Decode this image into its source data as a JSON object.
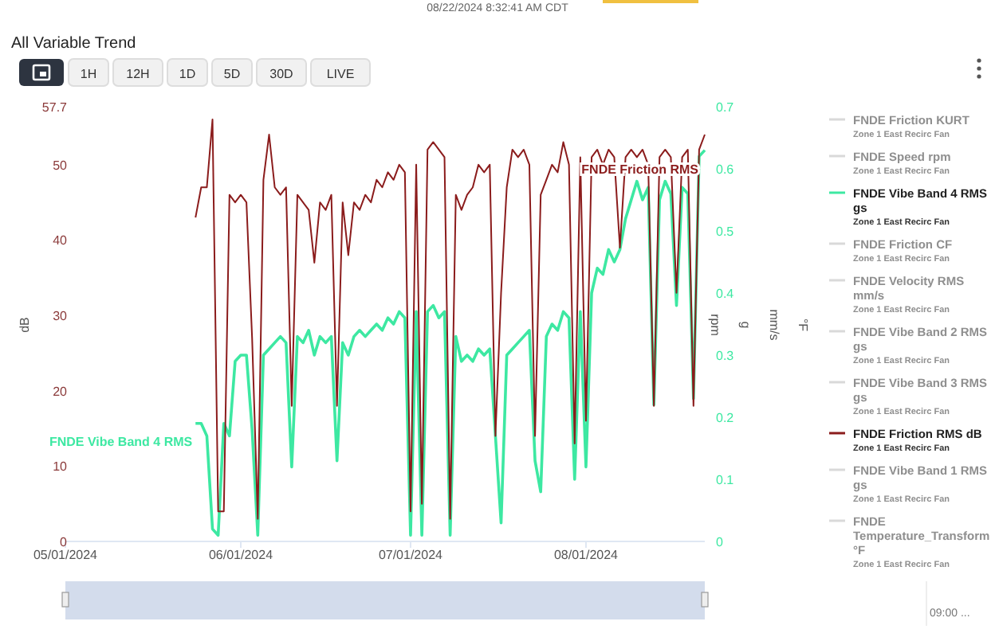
{
  "chart_data": {
    "type": "line",
    "title": "All Variable Trend",
    "ylabel": "dB",
    "y2label": "rpm",
    "annotations": [
      "08/22/2024 8:32:41 AM CDT",
      "1H",
      "12H",
      "1D",
      "5D",
      "30D",
      "LIVE",
      "g",
      "mm/s",
      "°F",
      "09:00 ...",
      "FNDE Vibe Band 4 RMS",
      "FNDE Friction RMS"
    ],
    "xlim": [
      "2024-05-01",
      "2024-08-22"
    ],
    "xticks": [
      {
        "value": "2024-05-01",
        "label": "05/01/2024"
      },
      {
        "value": "2024-06-01",
        "label": "06/01/2024"
      },
      {
        "value": "2024-07-01",
        "label": "07/01/2024"
      },
      {
        "value": "2024-08-01",
        "label": "08/01/2024"
      }
    ],
    "ylim": [
      0,
      57.7
    ],
    "yticks": [
      0,
      10,
      20,
      30,
      40,
      50,
      57.7
    ],
    "y2lim": [
      0,
      0.7
    ],
    "y2ticks": [
      0,
      0.1,
      0.2,
      0.3,
      0.4,
      0.5,
      0.6,
      0.7
    ],
    "legend": "right",
    "marker": "none",
    "line_style": "solid",
    "x": [
      "2024-05-24",
      "2024-05-25",
      "2024-05-26",
      "2024-05-27",
      "2024-05-28",
      "2024-05-29",
      "2024-05-30",
      "2024-05-31",
      "2024-06-01",
      "2024-06-02",
      "2024-06-03",
      "2024-06-04",
      "2024-06-05",
      "2024-06-06",
      "2024-06-07",
      "2024-06-08",
      "2024-06-09",
      "2024-06-10",
      "2024-06-11",
      "2024-06-12",
      "2024-06-13",
      "2024-06-14",
      "2024-06-15",
      "2024-06-16",
      "2024-06-17",
      "2024-06-18",
      "2024-06-19",
      "2024-06-20",
      "2024-06-21",
      "2024-06-22",
      "2024-06-23",
      "2024-06-24",
      "2024-06-25",
      "2024-06-26",
      "2024-06-27",
      "2024-06-28",
      "2024-06-29",
      "2024-06-30",
      "2024-07-01",
      "2024-07-02",
      "2024-07-03",
      "2024-07-04",
      "2024-07-05",
      "2024-07-06",
      "2024-07-07",
      "2024-07-08",
      "2024-07-09",
      "2024-07-10",
      "2024-07-11",
      "2024-07-12",
      "2024-07-13",
      "2024-07-14",
      "2024-07-15",
      "2024-07-16",
      "2024-07-17",
      "2024-07-18",
      "2024-07-19",
      "2024-07-20",
      "2024-07-21",
      "2024-07-22",
      "2024-07-23",
      "2024-07-24",
      "2024-07-25",
      "2024-07-26",
      "2024-07-27",
      "2024-07-28",
      "2024-07-29",
      "2024-07-30",
      "2024-07-31",
      "2024-08-01",
      "2024-08-02",
      "2024-08-03",
      "2024-08-04",
      "2024-08-05",
      "2024-08-06",
      "2024-08-07",
      "2024-08-08",
      "2024-08-09",
      "2024-08-10",
      "2024-08-11",
      "2024-08-12",
      "2024-08-13",
      "2024-08-14",
      "2024-08-15",
      "2024-08-16",
      "2024-08-17",
      "2024-08-18",
      "2024-08-19",
      "2024-08-20",
      "2024-08-21",
      "2024-08-22"
    ],
    "series": [
      {
        "name": "FNDE Friction KURT\nZone 1 East Recirc Fan",
        "color": "#d9d9d9",
        "values": [
          null,
          null,
          null,
          null,
          null,
          null,
          null,
          null,
          null,
          null,
          null,
          null,
          null,
          null,
          null,
          null,
          null,
          null,
          null,
          null,
          null,
          null,
          null,
          null,
          null,
          null,
          null,
          null,
          null,
          null,
          null,
          null,
          null,
          null,
          null,
          null,
          null,
          null,
          null,
          null,
          null,
          null,
          null,
          null,
          null,
          null,
          null,
          null,
          null,
          null,
          null,
          null,
          null,
          null,
          null,
          null,
          null,
          null,
          null,
          null,
          null,
          null,
          null,
          null,
          null,
          null,
          null,
          null,
          null,
          null,
          null,
          null,
          null,
          null,
          null,
          null,
          null,
          null,
          null,
          null,
          null,
          null,
          null,
          null,
          null,
          null,
          null,
          null,
          null,
          null,
          null
        ]
      },
      {
        "name": "FNDE Speed rpm\nZone 1 East Recirc Fan",
        "color": "#d9d9d9",
        "values": [
          null,
          null,
          null,
          null,
          null,
          null,
          null,
          null,
          null,
          null,
          null,
          null,
          null,
          null,
          null,
          null,
          null,
          null,
          null,
          null,
          null,
          null,
          null,
          null,
          null,
          null,
          null,
          null,
          null,
          null,
          null,
          null,
          null,
          null,
          null,
          null,
          null,
          null,
          null,
          null,
          null,
          null,
          null,
          null,
          null,
          null,
          null,
          null,
          null,
          null,
          null,
          null,
          null,
          null,
          null,
          null,
          null,
          null,
          null,
          null,
          null,
          null,
          null,
          null,
          null,
          null,
          null,
          null,
          null,
          null,
          null,
          null,
          null,
          null,
          null,
          null,
          null,
          null,
          null,
          null,
          null,
          null,
          null,
          null,
          null,
          null,
          null,
          null,
          null,
          null,
          null
        ]
      },
      {
        "name": "FNDE Vibe Band 4 RMS gs\nZone 1 East Recirc Fan",
        "color": "#3de8a2",
        "axis": "y2",
        "values": [
          0.19,
          0.19,
          0.17,
          0.02,
          0.01,
          0.19,
          0.17,
          0.29,
          0.3,
          0.3,
          0.18,
          0.01,
          0.3,
          0.31,
          0.32,
          0.33,
          0.32,
          0.12,
          0.33,
          0.32,
          0.34,
          0.3,
          0.33,
          0.32,
          0.33,
          0.13,
          0.32,
          0.3,
          0.33,
          0.34,
          0.33,
          0.34,
          0.35,
          0.34,
          0.36,
          0.35,
          0.37,
          0.36,
          0.01,
          0.37,
          0.01,
          0.37,
          0.38,
          0.36,
          0.37,
          0.01,
          0.33,
          0.29,
          0.3,
          0.29,
          0.31,
          0.3,
          0.31,
          0.17,
          0.03,
          0.3,
          0.31,
          0.32,
          0.33,
          0.34,
          0.13,
          0.08,
          0.33,
          0.35,
          0.34,
          0.37,
          0.36,
          0.1,
          0.37,
          0.12,
          0.4,
          0.44,
          0.43,
          0.47,
          0.45,
          0.47,
          0.52,
          0.55,
          0.58,
          0.55,
          0.57,
          0.22,
          0.55,
          0.58,
          0.56,
          0.38,
          0.57,
          0.56,
          0.23,
          0.62,
          0.63
        ]
      },
      {
        "name": "FNDE Friction CF\nZone 1 East Recirc Fan",
        "color": "#d9d9d9",
        "values": [
          null,
          null,
          null,
          null,
          null,
          null,
          null,
          null,
          null,
          null,
          null,
          null,
          null,
          null,
          null,
          null,
          null,
          null,
          null,
          null,
          null,
          null,
          null,
          null,
          null,
          null,
          null,
          null,
          null,
          null,
          null,
          null,
          null,
          null,
          null,
          null,
          null,
          null,
          null,
          null,
          null,
          null,
          null,
          null,
          null,
          null,
          null,
          null,
          null,
          null,
          null,
          null,
          null,
          null,
          null,
          null,
          null,
          null,
          null,
          null,
          null,
          null,
          null,
          null,
          null,
          null,
          null,
          null,
          null,
          null,
          null,
          null,
          null,
          null,
          null,
          null,
          null,
          null,
          null,
          null,
          null,
          null,
          null,
          null,
          null,
          null,
          null,
          null,
          null,
          null,
          null
        ]
      },
      {
        "name": "FNDE Velocity RMS mm/s\nZone 1 East Recirc Fan",
        "color": "#d9d9d9",
        "values": [
          null,
          null,
          null,
          null,
          null,
          null,
          null,
          null,
          null,
          null,
          null,
          null,
          null,
          null,
          null,
          null,
          null,
          null,
          null,
          null,
          null,
          null,
          null,
          null,
          null,
          null,
          null,
          null,
          null,
          null,
          null,
          null,
          null,
          null,
          null,
          null,
          null,
          null,
          null,
          null,
          null,
          null,
          null,
          null,
          null,
          null,
          null,
          null,
          null,
          null,
          null,
          null,
          null,
          null,
          null,
          null,
          null,
          null,
          null,
          null,
          null,
          null,
          null,
          null,
          null,
          null,
          null,
          null,
          null,
          null,
          null,
          null,
          null,
          null,
          null,
          null,
          null,
          null,
          null,
          null,
          null,
          null,
          null,
          null,
          null,
          null,
          null,
          null,
          null,
          null,
          null
        ]
      },
      {
        "name": "FNDE Vibe Band 2 RMS gs\nZone 1 East Recirc Fan",
        "color": "#d9d9d9",
        "values": [
          null,
          null,
          null,
          null,
          null,
          null,
          null,
          null,
          null,
          null,
          null,
          null,
          null,
          null,
          null,
          null,
          null,
          null,
          null,
          null,
          null,
          null,
          null,
          null,
          null,
          null,
          null,
          null,
          null,
          null,
          null,
          null,
          null,
          null,
          null,
          null,
          null,
          null,
          null,
          null,
          null,
          null,
          null,
          null,
          null,
          null,
          null,
          null,
          null,
          null,
          null,
          null,
          null,
          null,
          null,
          null,
          null,
          null,
          null,
          null,
          null,
          null,
          null,
          null,
          null,
          null,
          null,
          null,
          null,
          null,
          null,
          null,
          null,
          null,
          null,
          null,
          null,
          null,
          null,
          null,
          null,
          null,
          null,
          null,
          null,
          null,
          null,
          null,
          null,
          null,
          null
        ]
      },
      {
        "name": "FNDE Vibe Band 3 RMS gs\nZone 1 East Recirc Fan",
        "color": "#d9d9d9",
        "values": [
          null,
          null,
          null,
          null,
          null,
          null,
          null,
          null,
          null,
          null,
          null,
          null,
          null,
          null,
          null,
          null,
          null,
          null,
          null,
          null,
          null,
          null,
          null,
          null,
          null,
          null,
          null,
          null,
          null,
          null,
          null,
          null,
          null,
          null,
          null,
          null,
          null,
          null,
          null,
          null,
          null,
          null,
          null,
          null,
          null,
          null,
          null,
          null,
          null,
          null,
          null,
          null,
          null,
          null,
          null,
          null,
          null,
          null,
          null,
          null,
          null,
          null,
          null,
          null,
          null,
          null,
          null,
          null,
          null,
          null,
          null,
          null,
          null,
          null,
          null,
          null,
          null,
          null,
          null,
          null,
          null,
          null,
          null,
          null,
          null,
          null,
          null,
          null,
          null,
          null,
          null
        ]
      },
      {
        "name": "FNDE Friction RMS dB\nZone 1 East Recirc Fan",
        "color": "#8b1c1c",
        "values": [
          43,
          47,
          47,
          56,
          4,
          4,
          46,
          45,
          46,
          45,
          27,
          3,
          48,
          54,
          47,
          46,
          47,
          18,
          46,
          45,
          44,
          37,
          45,
          44,
          46,
          18,
          45,
          38,
          45,
          44,
          46,
          45,
          48,
          47,
          49,
          48,
          50,
          49,
          4,
          50,
          5,
          52,
          53,
          52,
          51,
          3,
          46,
          44,
          46,
          47,
          50,
          49,
          50,
          14,
          33,
          47,
          52,
          51,
          52,
          50,
          14,
          46,
          48,
          50,
          49,
          53,
          50,
          13,
          51,
          16,
          51,
          52,
          50,
          52,
          51,
          39,
          51,
          52,
          51,
          52,
          50,
          18,
          51,
          52,
          51,
          33,
          51,
          52,
          18,
          52,
          54
        ]
      },
      {
        "name": "FNDE Vibe Band 1 RMS gs\nZone 1 East Recirc Fan",
        "color": "#d9d9d9",
        "values": [
          null,
          null,
          null,
          null,
          null,
          null,
          null,
          null,
          null,
          null,
          null,
          null,
          null,
          null,
          null,
          null,
          null,
          null,
          null,
          null,
          null,
          null,
          null,
          null,
          null,
          null,
          null,
          null,
          null,
          null,
          null,
          null,
          null,
          null,
          null,
          null,
          null,
          null,
          null,
          null,
          null,
          null,
          null,
          null,
          null,
          null,
          null,
          null,
          null,
          null,
          null,
          null,
          null,
          null,
          null,
          null,
          null,
          null,
          null,
          null,
          null,
          null,
          null,
          null,
          null,
          null,
          null,
          null,
          null,
          null,
          null,
          null,
          null,
          null,
          null,
          null,
          null,
          null,
          null,
          null,
          null,
          null,
          null,
          null,
          null,
          null,
          null,
          null,
          null,
          null,
          null
        ]
      },
      {
        "name": "FNDE Temperature_Transform °F\nZone 1 East Recirc Fan",
        "color": "#d9d9d9",
        "values": [
          null,
          null,
          null,
          null,
          null,
          null,
          null,
          null,
          null,
          null,
          null,
          null,
          null,
          null,
          null,
          null,
          null,
          null,
          null,
          null,
          null,
          null,
          null,
          null,
          null,
          null,
          null,
          null,
          null,
          null,
          null,
          null,
          null,
          null,
          null,
          null,
          null,
          null,
          null,
          null,
          null,
          null,
          null,
          null,
          null,
          null,
          null,
          null,
          null,
          null,
          null,
          null,
          null,
          null,
          null,
          null,
          null,
          null,
          null,
          null,
          null,
          null,
          null,
          null,
          null,
          null,
          null,
          null,
          null,
          null,
          null,
          null,
          null,
          null,
          null,
          null,
          null,
          null,
          null,
          null,
          null,
          null,
          null,
          null,
          null,
          null,
          null,
          null,
          null,
          null,
          null
        ]
      }
    ]
  }
}
